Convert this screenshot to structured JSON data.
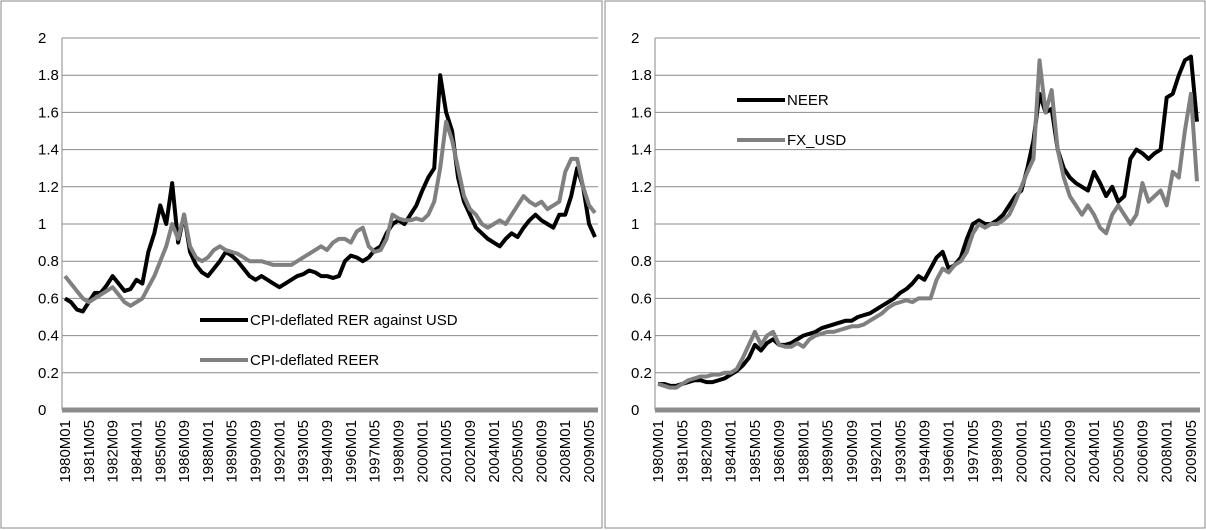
{
  "chart_data": [
    {
      "type": "line",
      "categories": [
        "1980M01",
        null,
        null,
        null,
        "1981M05",
        null,
        null,
        null,
        "1982M09",
        null,
        null,
        null,
        "1984M01",
        null,
        null,
        null,
        "1985M05",
        null,
        null,
        null,
        "1986M09",
        null,
        null,
        null,
        "1988M01",
        null,
        null,
        null,
        "1989M05",
        null,
        null,
        null,
        "1990M09",
        null,
        null,
        null,
        "1992M01",
        null,
        null,
        null,
        "1993M05",
        null,
        null,
        null,
        "1994M09",
        null,
        null,
        null,
        "1996M01",
        null,
        null,
        null,
        "1997M05",
        null,
        null,
        null,
        "1998M09",
        null,
        null,
        null,
        "2000M01",
        null,
        null,
        null,
        "2001M05",
        null,
        null,
        null,
        "2002M09",
        null,
        null,
        null,
        "2004M01",
        null,
        null,
        null,
        "2005M05",
        null,
        null,
        null,
        "2006M09",
        null,
        null,
        null,
        "2008M01",
        null,
        null,
        null,
        "2009M05",
        null
      ],
      "series": [
        {
          "name": "CPI-deflated RER against  USD",
          "color": "#000000",
          "values": [
            0.6,
            0.58,
            0.54,
            0.53,
            0.58,
            0.63,
            0.63,
            0.67,
            0.72,
            0.68,
            0.64,
            0.65,
            0.7,
            0.68,
            0.85,
            0.95,
            1.1,
            1.0,
            1.22,
            0.9,
            1.05,
            0.85,
            0.78,
            0.74,
            0.72,
            0.76,
            0.8,
            0.85,
            0.83,
            0.8,
            0.76,
            0.72,
            0.7,
            0.72,
            0.7,
            0.68,
            0.66,
            0.68,
            0.7,
            0.72,
            0.73,
            0.75,
            0.74,
            0.72,
            0.72,
            0.71,
            0.72,
            0.8,
            0.83,
            0.82,
            0.8,
            0.82,
            0.86,
            0.88,
            0.95,
            1.0,
            1.02,
            1.0,
            1.05,
            1.1,
            1.18,
            1.25,
            1.3,
            1.8,
            1.6,
            1.5,
            1.25,
            1.12,
            1.05,
            0.98,
            0.95,
            0.92,
            0.9,
            0.88,
            0.92,
            0.95,
            0.93,
            0.98,
            1.02,
            1.05,
            1.02,
            1.0,
            0.98,
            1.05,
            1.05,
            1.15,
            1.3,
            1.2,
            1.0,
            0.93
          ]
        },
        {
          "name": "CPI-deflated REER",
          "color": "#808080",
          "values": [
            0.72,
            0.68,
            0.64,
            0.6,
            0.58,
            0.6,
            0.62,
            0.64,
            0.66,
            0.62,
            0.58,
            0.56,
            0.58,
            0.6,
            0.66,
            0.72,
            0.8,
            0.88,
            1.0,
            0.92,
            1.05,
            0.88,
            0.82,
            0.8,
            0.82,
            0.86,
            0.88,
            0.86,
            0.85,
            0.84,
            0.82,
            0.8,
            0.8,
            0.8,
            0.79,
            0.78,
            0.78,
            0.78,
            0.78,
            0.8,
            0.82,
            0.84,
            0.86,
            0.88,
            0.86,
            0.9,
            0.92,
            0.92,
            0.9,
            0.96,
            0.98,
            0.88,
            0.85,
            0.86,
            0.92,
            1.05,
            1.03,
            1.02,
            1.02,
            1.03,
            1.02,
            1.05,
            1.12,
            1.3,
            1.55,
            1.45,
            1.3,
            1.15,
            1.08,
            1.05,
            1.0,
            0.98,
            1.0,
            1.02,
            1.0,
            1.05,
            1.1,
            1.15,
            1.12,
            1.1,
            1.12,
            1.08,
            1.1,
            1.12,
            1.28,
            1.35,
            1.35,
            1.2,
            1.1,
            1.06
          ]
        }
      ],
      "ylim": [
        0,
        2
      ],
      "yticks": [
        0,
        0.2,
        0.4,
        0.6,
        0.8,
        1,
        1.2,
        1.4,
        1.6,
        1.8,
        2
      ],
      "grid": true,
      "legend": "lower center"
    },
    {
      "type": "line",
      "categories": [
        "1980M01",
        null,
        null,
        null,
        "1981M05",
        null,
        null,
        null,
        "1982M09",
        null,
        null,
        null,
        "1984M01",
        null,
        null,
        null,
        "1985M05",
        null,
        null,
        null,
        "1986M09",
        null,
        null,
        null,
        "1988M01",
        null,
        null,
        null,
        "1989M05",
        null,
        null,
        null,
        "1990M09",
        null,
        null,
        null,
        "1992M01",
        null,
        null,
        null,
        "1993M05",
        null,
        null,
        null,
        "1994M09",
        null,
        null,
        null,
        "1996M01",
        null,
        null,
        null,
        "1997M05",
        null,
        null,
        null,
        "1998M09",
        null,
        null,
        null,
        "2000M01",
        null,
        null,
        null,
        "2001M05",
        null,
        null,
        null,
        "2002M09",
        null,
        null,
        null,
        "2004M01",
        null,
        null,
        null,
        "2005M05",
        null,
        null,
        null,
        "2006M09",
        null,
        null,
        null,
        "2008M01",
        null,
        null,
        null,
        "2009M05",
        null
      ],
      "series": [
        {
          "name": "NEER",
          "color": "#000000",
          "values": [
            0.14,
            0.14,
            0.13,
            0.13,
            0.14,
            0.15,
            0.16,
            0.16,
            0.15,
            0.15,
            0.16,
            0.17,
            0.19,
            0.21,
            0.24,
            0.28,
            0.35,
            0.32,
            0.36,
            0.38,
            0.35,
            0.35,
            0.36,
            0.38,
            0.4,
            0.41,
            0.42,
            0.44,
            0.45,
            0.46,
            0.47,
            0.48,
            0.48,
            0.5,
            0.51,
            0.52,
            0.54,
            0.56,
            0.58,
            0.6,
            0.63,
            0.65,
            0.68,
            0.72,
            0.7,
            0.76,
            0.82,
            0.85,
            0.76,
            0.78,
            0.82,
            0.92,
            1.0,
            1.02,
            1.0,
            1.0,
            1.02,
            1.05,
            1.1,
            1.15,
            1.18,
            1.3,
            1.45,
            1.7,
            1.6,
            1.62,
            1.4,
            1.3,
            1.25,
            1.22,
            1.2,
            1.18,
            1.28,
            1.22,
            1.15,
            1.2,
            1.12,
            1.15,
            1.35,
            1.4,
            1.38,
            1.35,
            1.38,
            1.4,
            1.68,
            1.7,
            1.8,
            1.88,
            1.9,
            1.55
          ]
        },
        {
          "name": "FX_USD",
          "color": "#808080",
          "values": [
            0.14,
            0.13,
            0.12,
            0.12,
            0.14,
            0.16,
            0.17,
            0.18,
            0.18,
            0.19,
            0.19,
            0.2,
            0.2,
            0.22,
            0.28,
            0.35,
            0.42,
            0.35,
            0.4,
            0.42,
            0.35,
            0.34,
            0.34,
            0.36,
            0.34,
            0.38,
            0.4,
            0.41,
            0.42,
            0.42,
            0.43,
            0.44,
            0.45,
            0.45,
            0.46,
            0.48,
            0.5,
            0.52,
            0.55,
            0.57,
            0.58,
            0.59,
            0.58,
            0.6,
            0.6,
            0.6,
            0.7,
            0.76,
            0.74,
            0.78,
            0.8,
            0.85,
            0.95,
            1.0,
            0.98,
            1.0,
            1.0,
            1.02,
            1.05,
            1.12,
            1.2,
            1.28,
            1.35,
            1.88,
            1.6,
            1.72,
            1.4,
            1.25,
            1.15,
            1.1,
            1.05,
            1.1,
            1.05,
            0.98,
            0.95,
            1.05,
            1.1,
            1.05,
            1.0,
            1.05,
            1.22,
            1.12,
            1.15,
            1.18,
            1.1,
            1.28,
            1.25,
            1.5,
            1.7,
            1.23
          ]
        }
      ],
      "ylim": [
        0,
        2
      ],
      "yticks": [
        0,
        0.2,
        0.4,
        0.6,
        0.8,
        1,
        1.2,
        1.4,
        1.6,
        1.8,
        2
      ],
      "grid": true,
      "legend": "upper left"
    }
  ]
}
